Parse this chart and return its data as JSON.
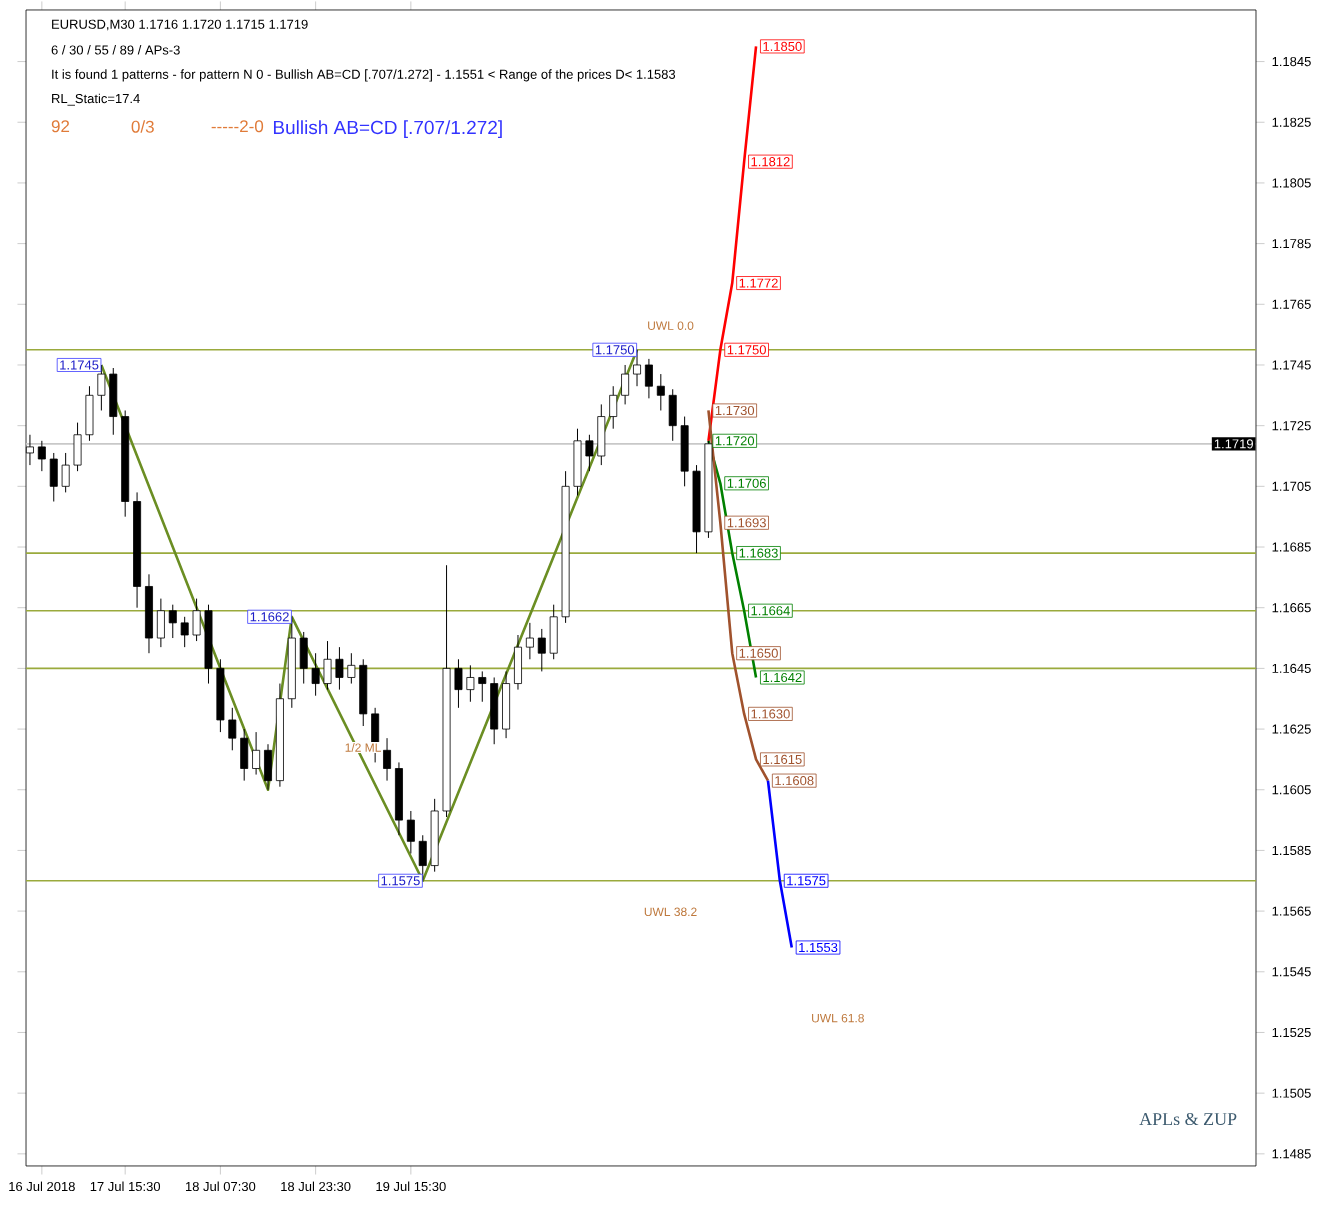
{
  "chart_data": {
    "type": "candlestick",
    "title": "EURUSD,M30  1.1716 1.1720 1.1715 1.1719",
    "categories": [
      null,
      "16 Jul 2018",
      null,
      null,
      null,
      null,
      null,
      null,
      "17 Jul 15:30",
      null,
      null,
      null,
      null,
      null,
      null,
      null,
      "18 Jul 07:30",
      null,
      null,
      null,
      null,
      null,
      null,
      null,
      "18 Jul 23:30",
      null,
      null,
      null,
      null,
      null,
      null,
      null,
      "19 Jul 15:30",
      null,
      null,
      null,
      null,
      null,
      null,
      null,
      null,
      null,
      null,
      null,
      null,
      null,
      null,
      null,
      null,
      null,
      null,
      null,
      null,
      null,
      null,
      null,
      null,
      null,
      null,
      null,
      null,
      null,
      null,
      null,
      null,
      null,
      null,
      null,
      null,
      null,
      null,
      null,
      null,
      null,
      null,
      null,
      null,
      null,
      null,
      null,
      null,
      null,
      null,
      null,
      null,
      null,
      null,
      null,
      null,
      null,
      null,
      null,
      null,
      null,
      null,
      null,
      null,
      null,
      null,
      null,
      null,
      null,
      null,
      null
    ],
    "ohlc": [
      [
        1.1716,
        1.1722,
        1.1712,
        1.1718
      ],
      [
        1.1718,
        1.172,
        1.171,
        1.1714
      ],
      [
        1.1714,
        1.1716,
        1.17,
        1.1705
      ],
      [
        1.1705,
        1.1716,
        1.1703,
        1.1712
      ],
      [
        1.1712,
        1.1726,
        1.171,
        1.1722
      ],
      [
        1.1722,
        1.1738,
        1.172,
        1.1735
      ],
      [
        1.1735,
        1.1745,
        1.173,
        1.1742
      ],
      [
        1.1742,
        1.1744,
        1.1722,
        1.1728
      ],
      [
        1.1728,
        1.173,
        1.1695,
        1.17
      ],
      [
        1.17,
        1.1703,
        1.1665,
        1.1672
      ],
      [
        1.1672,
        1.1676,
        1.165,
        1.1655
      ],
      [
        1.1655,
        1.1668,
        1.1652,
        1.1664
      ],
      [
        1.1664,
        1.1666,
        1.1655,
        1.166
      ],
      [
        1.166,
        1.1662,
        1.1652,
        1.1656
      ],
      [
        1.1656,
        1.1668,
        1.1654,
        1.1664
      ],
      [
        1.1664,
        1.1666,
        1.164,
        1.1645
      ],
      [
        1.1645,
        1.1648,
        1.1624,
        1.1628
      ],
      [
        1.1628,
        1.1632,
        1.1618,
        1.1622
      ],
      [
        1.1622,
        1.1625,
        1.1608,
        1.1612
      ],
      [
        1.1612,
        1.1624,
        1.161,
        1.1618
      ],
      [
        1.1618,
        1.162,
        1.1605,
        1.1608
      ],
      [
        1.1608,
        1.164,
        1.1606,
        1.1635
      ],
      [
        1.1635,
        1.1662,
        1.1632,
        1.1655
      ],
      [
        1.1655,
        1.1657,
        1.164,
        1.1645
      ],
      [
        1.1645,
        1.165,
        1.1636,
        1.164
      ],
      [
        1.164,
        1.1654,
        1.1638,
        1.1648
      ],
      [
        1.1648,
        1.1652,
        1.1638,
        1.1642
      ],
      [
        1.1642,
        1.165,
        1.164,
        1.1646
      ],
      [
        1.1646,
        1.1648,
        1.1626,
        1.163
      ],
      [
        1.163,
        1.1632,
        1.1614,
        1.1618
      ],
      [
        1.1618,
        1.1622,
        1.1608,
        1.1612
      ],
      [
        1.1612,
        1.1614,
        1.159,
        1.1595
      ],
      [
        1.1595,
        1.1598,
        1.1584,
        1.1588
      ],
      [
        1.1588,
        1.159,
        1.1575,
        1.158
      ],
      [
        1.158,
        1.1602,
        1.1578,
        1.1598
      ],
      [
        1.1598,
        1.1679,
        1.1596,
        1.1645
      ],
      [
        1.1645,
        1.1648,
        1.1632,
        1.1638
      ],
      [
        1.1638,
        1.1646,
        1.1634,
        1.1642
      ],
      [
        1.1642,
        1.1644,
        1.1634,
        1.164
      ],
      [
        1.164,
        1.1642,
        1.162,
        1.1625
      ],
      [
        1.1625,
        1.1644,
        1.1622,
        1.164
      ],
      [
        1.164,
        1.1656,
        1.1638,
        1.1652
      ],
      [
        1.1652,
        1.166,
        1.1648,
        1.1655
      ],
      [
        1.1655,
        1.1658,
        1.1644,
        1.165
      ],
      [
        1.165,
        1.1666,
        1.1648,
        1.1662
      ],
      [
        1.1662,
        1.171,
        1.166,
        1.1705
      ],
      [
        1.1705,
        1.1724,
        1.1702,
        1.172
      ],
      [
        1.172,
        1.1722,
        1.171,
        1.1715
      ],
      [
        1.1715,
        1.1732,
        1.1712,
        1.1728
      ],
      [
        1.1728,
        1.1738,
        1.1724,
        1.1735
      ],
      [
        1.1735,
        1.1745,
        1.1732,
        1.1742
      ],
      [
        1.1742,
        1.175,
        1.1738,
        1.1745
      ],
      [
        1.1745,
        1.1747,
        1.1734,
        1.1738
      ],
      [
        1.1738,
        1.1742,
        1.173,
        1.1735
      ],
      [
        1.1735,
        1.1737,
        1.172,
        1.1725
      ],
      [
        1.1725,
        1.1728,
        1.1705,
        1.171
      ],
      [
        1.171,
        1.1712,
        1.1683,
        1.169
      ],
      [
        1.169,
        1.172,
        1.1688,
        1.1719
      ],
      null,
      null,
      null,
      null,
      null,
      null,
      null,
      null,
      null,
      null,
      null,
      null,
      null,
      null,
      null,
      null,
      null,
      null,
      null,
      null,
      null,
      null,
      null,
      null,
      null,
      null,
      null,
      null,
      null,
      null,
      null,
      null,
      null,
      null,
      null,
      null,
      null,
      null,
      null,
      null,
      null,
      null,
      null,
      null,
      null,
      null
    ],
    "series": [
      {
        "type": "line",
        "color": "#6b8e23",
        "values": [
          null,
          null,
          null,
          null,
          null,
          null,
          1.1745,
          null,
          null,
          null,
          null,
          null,
          null,
          null,
          null,
          null,
          null,
          null,
          null,
          null,
          1.1605,
          null,
          1.1662,
          null,
          null,
          null,
          null,
          null,
          null,
          null,
          null,
          null,
          null,
          1.1575,
          null,
          null,
          null,
          null,
          null,
          null,
          null,
          null,
          null,
          null,
          null,
          null,
          null,
          null,
          null,
          null,
          null,
          1.175,
          null,
          null,
          null,
          null,
          null,
          null,
          null,
          null,
          null,
          null,
          null,
          null,
          null,
          null,
          null,
          null,
          null,
          null,
          null,
          null,
          null,
          null,
          null,
          null,
          null,
          null,
          null,
          null,
          null,
          null,
          null,
          null,
          null,
          null,
          null,
          null,
          null,
          null,
          null,
          null,
          null,
          null,
          null,
          null,
          null,
          null,
          null,
          null,
          null,
          null,
          null,
          null
        ],
        "value_labels": [
          null,
          null,
          null,
          null,
          null,
          null,
          "1.1745",
          null,
          null,
          null,
          null,
          null,
          null,
          null,
          null,
          null,
          null,
          null,
          null,
          null,
          null,
          null,
          "1.1662",
          null,
          null,
          null,
          null,
          null,
          null,
          null,
          null,
          null,
          null,
          "1.1575",
          null,
          null,
          null,
          null,
          null,
          null,
          null,
          null,
          null,
          null,
          null,
          null,
          null,
          null,
          null,
          null,
          null,
          "1.1750",
          null,
          null,
          null,
          null,
          null,
          null,
          null,
          null,
          null,
          null,
          null,
          null,
          null,
          null,
          null,
          null,
          null,
          null,
          null,
          null,
          null,
          null,
          null,
          null,
          null,
          null,
          null,
          null,
          null,
          null,
          null,
          null,
          null,
          null,
          null,
          null,
          null,
          null,
          null,
          null,
          null,
          null,
          null,
          null,
          null,
          null,
          null,
          null,
          null,
          null,
          null,
          null
        ]
      },
      {
        "type": "line",
        "color": "#ff0000",
        "values": [
          null,
          null,
          null,
          null,
          null,
          null,
          null,
          null,
          null,
          null,
          null,
          null,
          null,
          null,
          null,
          null,
          null,
          null,
          null,
          null,
          null,
          null,
          null,
          null,
          null,
          null,
          null,
          null,
          null,
          null,
          null,
          null,
          null,
          null,
          null,
          null,
          null,
          null,
          null,
          null,
          null,
          null,
          null,
          null,
          null,
          null,
          null,
          null,
          null,
          null,
          null,
          null,
          null,
          null,
          null,
          null,
          null,
          1.172,
          1.175,
          1.1772,
          1.1812,
          1.185,
          null,
          null,
          null,
          null,
          null,
          null,
          null,
          null,
          null,
          null,
          null,
          null,
          null,
          null,
          null,
          null,
          null,
          null,
          null,
          null,
          null,
          null,
          null,
          null,
          null,
          null,
          null,
          null,
          null,
          null,
          null,
          null,
          null,
          null,
          null,
          null,
          null,
          null,
          null,
          null,
          null,
          null
        ],
        "value_labels": [
          null,
          null,
          null,
          null,
          null,
          null,
          null,
          null,
          null,
          null,
          null,
          null,
          null,
          null,
          null,
          null,
          null,
          null,
          null,
          null,
          null,
          null,
          null,
          null,
          null,
          null,
          null,
          null,
          null,
          null,
          null,
          null,
          null,
          null,
          null,
          null,
          null,
          null,
          null,
          null,
          null,
          null,
          null,
          null,
          null,
          null,
          null,
          null,
          null,
          null,
          null,
          null,
          null,
          null,
          null,
          null,
          null,
          null,
          "1.1750",
          "1.1772",
          "1.1812",
          "1.1850",
          null,
          null,
          null,
          null,
          null,
          null,
          null,
          null,
          null,
          null,
          null,
          null,
          null,
          null,
          null,
          null,
          null,
          null,
          null,
          null,
          null,
          null,
          null,
          null,
          null,
          null,
          null,
          null,
          null,
          null,
          null,
          null,
          null,
          null,
          null,
          null,
          null,
          null,
          null,
          null,
          null,
          null
        ]
      },
      {
        "type": "line",
        "color": "#008000",
        "values": [
          null,
          null,
          null,
          null,
          null,
          null,
          null,
          null,
          null,
          null,
          null,
          null,
          null,
          null,
          null,
          null,
          null,
          null,
          null,
          null,
          null,
          null,
          null,
          null,
          null,
          null,
          null,
          null,
          null,
          null,
          null,
          null,
          null,
          null,
          null,
          null,
          null,
          null,
          null,
          null,
          null,
          null,
          null,
          null,
          null,
          null,
          null,
          null,
          null,
          null,
          null,
          null,
          null,
          null,
          null,
          null,
          null,
          1.172,
          1.1706,
          1.1683,
          1.1664,
          1.1642,
          null,
          null,
          null,
          null,
          null,
          null,
          null,
          null,
          null,
          null,
          null,
          null,
          null,
          null,
          null,
          null,
          null,
          null,
          null,
          null,
          null,
          null,
          null,
          null,
          null,
          null,
          null,
          null,
          null,
          null,
          null,
          null,
          null,
          null,
          null,
          null,
          null,
          null,
          null,
          null,
          null,
          null
        ],
        "value_labels": [
          null,
          null,
          null,
          null,
          null,
          null,
          null,
          null,
          null,
          null,
          null,
          null,
          null,
          null,
          null,
          null,
          null,
          null,
          null,
          null,
          null,
          null,
          null,
          null,
          null,
          null,
          null,
          null,
          null,
          null,
          null,
          null,
          null,
          null,
          null,
          null,
          null,
          null,
          null,
          null,
          null,
          null,
          null,
          null,
          null,
          null,
          null,
          null,
          null,
          null,
          null,
          null,
          null,
          null,
          null,
          null,
          null,
          "1.1720",
          "1.1706",
          "1.1683",
          "1.1664",
          "1.1642",
          null,
          null,
          null,
          null,
          null,
          null,
          null,
          null,
          null,
          null,
          null,
          null,
          null,
          null,
          null,
          null,
          null,
          null,
          null,
          null,
          null,
          null,
          null,
          null,
          null,
          null,
          null,
          null,
          null,
          null,
          null,
          null,
          null,
          null,
          null,
          null,
          null,
          null,
          null,
          null,
          null,
          null
        ]
      },
      {
        "type": "line",
        "color": "#a0522d",
        "values": [
          null,
          null,
          null,
          null,
          null,
          null,
          null,
          null,
          null,
          null,
          null,
          null,
          null,
          null,
          null,
          null,
          null,
          null,
          null,
          null,
          null,
          null,
          null,
          null,
          null,
          null,
          null,
          null,
          null,
          null,
          null,
          null,
          null,
          null,
          null,
          null,
          null,
          null,
          null,
          null,
          null,
          null,
          null,
          null,
          null,
          null,
          null,
          null,
          null,
          null,
          null,
          null,
          null,
          null,
          null,
          null,
          null,
          1.173,
          1.1693,
          1.165,
          1.163,
          1.1615,
          1.1608,
          null,
          null,
          null,
          null,
          null,
          null,
          null,
          null,
          null,
          null,
          null,
          null,
          null,
          null,
          null,
          null,
          null,
          null,
          null,
          null,
          null,
          null,
          null,
          null,
          null,
          null,
          null,
          null,
          null,
          null,
          null,
          null,
          null,
          null,
          null,
          null,
          null,
          null,
          null,
          null,
          null
        ],
        "value_labels": [
          null,
          null,
          null,
          null,
          null,
          null,
          null,
          null,
          null,
          null,
          null,
          null,
          null,
          null,
          null,
          null,
          null,
          null,
          null,
          null,
          null,
          null,
          null,
          null,
          null,
          null,
          null,
          null,
          null,
          null,
          null,
          null,
          null,
          null,
          null,
          null,
          null,
          null,
          null,
          null,
          null,
          null,
          null,
          null,
          null,
          null,
          null,
          null,
          null,
          null,
          null,
          null,
          null,
          null,
          null,
          null,
          null,
          "1.1730",
          "1.1693",
          "1.1650",
          "1.1630",
          "1.1615",
          "1.1608",
          null,
          null,
          null,
          null,
          null,
          null,
          null,
          null,
          null,
          null,
          null,
          null,
          null,
          null,
          null,
          null,
          null,
          null,
          null,
          null,
          null,
          null,
          null,
          null,
          null,
          null,
          null,
          null,
          null,
          null,
          null,
          null,
          null,
          null,
          null,
          null,
          null,
          null,
          null,
          null,
          null
        ]
      },
      {
        "type": "line",
        "color": "#0000ff",
        "values": [
          null,
          null,
          null,
          null,
          null,
          null,
          null,
          null,
          null,
          null,
          null,
          null,
          null,
          null,
          null,
          null,
          null,
          null,
          null,
          null,
          null,
          null,
          null,
          null,
          null,
          null,
          null,
          null,
          null,
          null,
          null,
          null,
          null,
          null,
          null,
          null,
          null,
          null,
          null,
          null,
          null,
          null,
          null,
          null,
          null,
          null,
          null,
          null,
          null,
          null,
          null,
          null,
          null,
          null,
          null,
          null,
          null,
          null,
          null,
          null,
          null,
          null,
          1.1608,
          1.1575,
          1.1553,
          null,
          null,
          null,
          null,
          null,
          null,
          null,
          null,
          null,
          null,
          null,
          null,
          null,
          null,
          null,
          null,
          null,
          null,
          null,
          null,
          null,
          null,
          null,
          null,
          null,
          null,
          null,
          null,
          null,
          null,
          null,
          null,
          null,
          null,
          null,
          null,
          null,
          null,
          null
        ],
        "value_labels": [
          null,
          null,
          null,
          null,
          null,
          null,
          null,
          null,
          null,
          null,
          null,
          null,
          null,
          null,
          null,
          null,
          null,
          null,
          null,
          null,
          null,
          null,
          null,
          null,
          null,
          null,
          null,
          null,
          null,
          null,
          null,
          null,
          null,
          null,
          null,
          null,
          null,
          null,
          null,
          null,
          null,
          null,
          null,
          null,
          null,
          null,
          null,
          null,
          null,
          null,
          null,
          null,
          null,
          null,
          null,
          null,
          null,
          null,
          null,
          null,
          null,
          null,
          null,
          "1.1575",
          "1.1553",
          null,
          null,
          null,
          null,
          null,
          null,
          null,
          null,
          null,
          null,
          null,
          null,
          null,
          null,
          null,
          null,
          null,
          null,
          null,
          null,
          null,
          null,
          null,
          null,
          null,
          null,
          null,
          null,
          null,
          null,
          null,
          null,
          null,
          null,
          null,
          null,
          null,
          null,
          null
        ]
      }
    ],
    "ylim": [
      1.1481,
      1.1862
    ],
    "yticks": [
      1.1485,
      1.1505,
      1.1525,
      1.1545,
      1.1565,
      1.1585,
      1.1605,
      1.1625,
      1.1645,
      1.1665,
      1.1685,
      1.1705,
      1.1725,
      1.1745,
      1.1765,
      1.1785,
      1.1805,
      1.1825,
      1.1845
    ],
    "ref_lines": [
      {
        "axis": "y",
        "value": 1.1719,
        "label": "1.1719",
        "color": "#c8c8c8",
        "line_style": "solid"
      },
      {
        "axis": "y",
        "value": 1.175,
        "color": "#9aaa3c",
        "line_style": "solid"
      },
      {
        "axis": "y",
        "value": 1.1683,
        "color": "#9aaa3c",
        "line_style": "solid"
      },
      {
        "axis": "y",
        "value": 1.1664,
        "color": "#9aaa3c",
        "line_style": "solid"
      },
      {
        "axis": "y",
        "value": 1.1645,
        "color": "#9aaa3c",
        "line_style": "solid"
      },
      {
        "axis": "y",
        "value": 1.1575,
        "color": "#9aaa3c",
        "line_style": "solid"
      }
    ],
    "annotations": [
      "6 / 30 / 55 / 89 / APs-3",
      "It is found 1 patterns  -  for pattern N 0 - Bullish AB=CD [.707/1.272] - 1.1551 < Range of the prices D< 1.1583",
      "RL_Static=17.4",
      "92",
      "0/3",
      "-----2-0",
      "Bullish AB=CD [.707/1.272]",
      "APLs & ZUP",
      "UWL 0.0",
      "1/2 ML",
      "UWL 38.2",
      "UWL 61.8"
    ]
  }
}
